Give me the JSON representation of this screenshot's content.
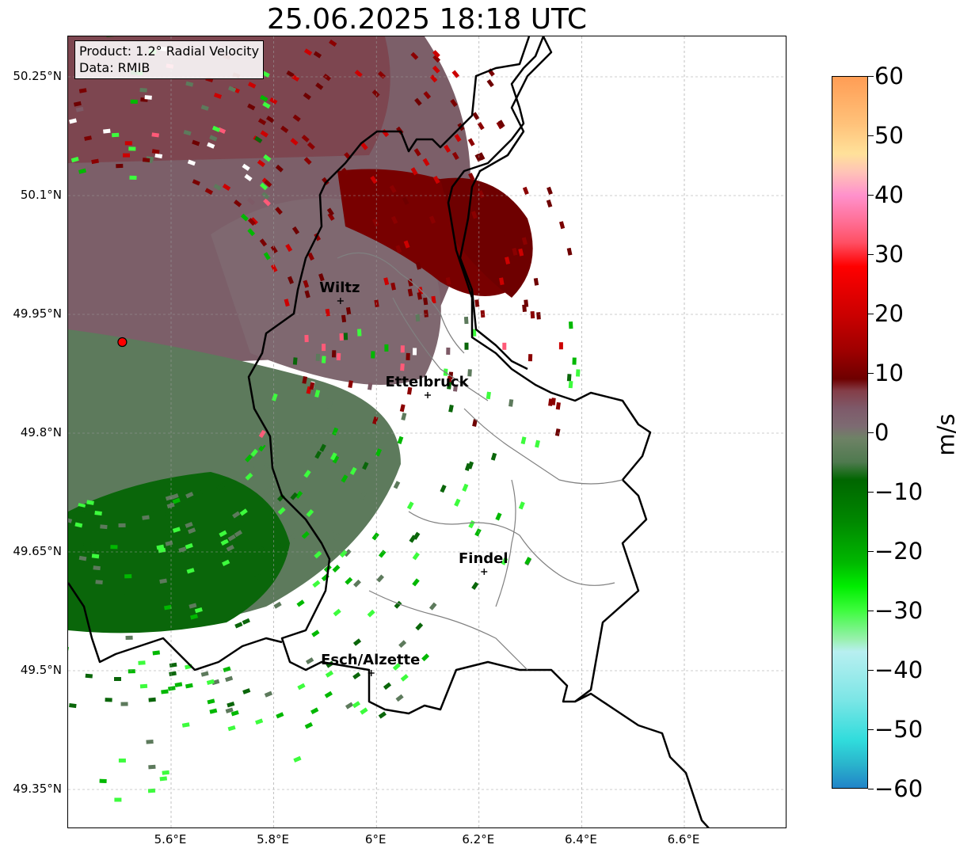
{
  "title": "25.06.2025 18:18 UTC",
  "info_box": {
    "product_line": "Product: 1.2° Radial Velocity",
    "data_line": "Data: RMIB"
  },
  "map": {
    "lat_ticks": [
      "50.25°N",
      "50.1°N",
      "49.95°N",
      "49.8°N",
      "49.65°N",
      "49.5°N",
      "49.35°N"
    ],
    "lon_ticks": [
      "5.6°E",
      "5.8°E",
      "6°E",
      "6.2°E",
      "6.4°E",
      "6.6°E"
    ],
    "extent": {
      "lon_min": 5.4,
      "lon_max": 6.8,
      "lat_min": 49.3,
      "lat_max": 50.3
    },
    "cities": [
      {
        "name": "Wiltz",
        "lon": 5.93,
        "lat": 49.967
      },
      {
        "name": "Ettelbruck",
        "lon": 6.1,
        "lat": 49.848
      },
      {
        "name": "Findel",
        "lon": 6.21,
        "lat": 49.625
      },
      {
        "name": "Esch/Alzette",
        "lon": 5.99,
        "lat": 49.497
      }
    ],
    "radar_site": {
      "lon": 5.505,
      "lat": 49.915,
      "color": "#ff0000"
    },
    "grid_on": true
  },
  "colorbar": {
    "label": "m/s",
    "min": -60,
    "max": 60,
    "ticks": [
      "60",
      "50",
      "40",
      "30",
      "20",
      "10",
      "0",
      "−10",
      "−20",
      "−30",
      "−40",
      "−50",
      "−60"
    ],
    "stops": [
      {
        "v": 60,
        "c": "#ff9d55"
      },
      {
        "v": 52,
        "c": "#ffc27a"
      },
      {
        "v": 47,
        "c": "#ffe19a"
      },
      {
        "v": 44,
        "c": "#ffc4b6"
      },
      {
        "v": 40,
        "c": "#ff91cc"
      },
      {
        "v": 35,
        "c": "#ff6a8e"
      },
      {
        "v": 32,
        "c": "#ff4f63"
      },
      {
        "v": 28,
        "c": "#ff0000"
      },
      {
        "v": 20,
        "c": "#cc0000"
      },
      {
        "v": 14,
        "c": "#a00000"
      },
      {
        "v": 9,
        "c": "#6e0000"
      },
      {
        "v": 7,
        "c": "#843e48"
      },
      {
        "v": 4,
        "c": "#7e5a6a"
      },
      {
        "v": 1,
        "c": "#7d6b72"
      },
      {
        "v": -1,
        "c": "#6e8266"
      },
      {
        "v": -5,
        "c": "#4f7a4f"
      },
      {
        "v": -8,
        "c": "#006600"
      },
      {
        "v": -15,
        "c": "#008800"
      },
      {
        "v": -22,
        "c": "#00b800"
      },
      {
        "v": -26,
        "c": "#00ee00"
      },
      {
        "v": -30,
        "c": "#3dfc3d"
      },
      {
        "v": -35,
        "c": "#9af0b0"
      },
      {
        "v": -37,
        "c": "#b8eff0"
      },
      {
        "v": -45,
        "c": "#7de6e6"
      },
      {
        "v": -52,
        "c": "#30dcdc"
      },
      {
        "v": -56,
        "c": "#2ab4cc"
      },
      {
        "v": -60,
        "c": "#2184c8"
      }
    ]
  }
}
